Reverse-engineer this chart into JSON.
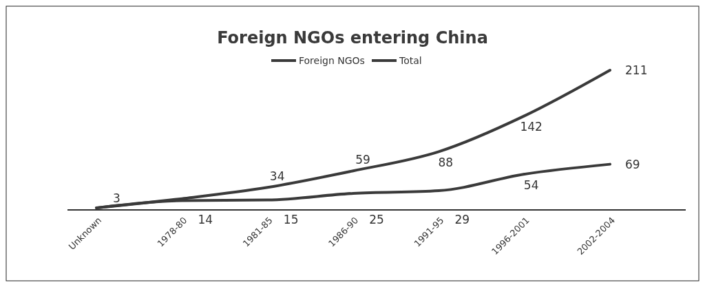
{
  "chart_data": {
    "type": "line",
    "title": "Foreign NGOs entering China",
    "categories": [
      "Unknown",
      "1978-80",
      "1981-85",
      "1986-90",
      "1991-95",
      "1996-2001",
      "2002-2004"
    ],
    "series": [
      {
        "name": "Foreign NGOs",
        "color": "#3a3a3a",
        "values": [
          3,
          14,
          15,
          25,
          29,
          54,
          69
        ],
        "value_labels": [
          "3",
          "14",
          "15",
          "25",
          "29",
          "54",
          "69"
        ]
      },
      {
        "name": "Total",
        "color": "#3a3a3a",
        "values": [
          3,
          17,
          34,
          59,
          88,
          142,
          211
        ],
        "value_labels": [
          null,
          null,
          "34",
          "59",
          "88",
          "142",
          "211"
        ]
      }
    ],
    "legend": "top",
    "marker": "none",
    "line_style": "solid",
    "tick_labels": "x"
  }
}
